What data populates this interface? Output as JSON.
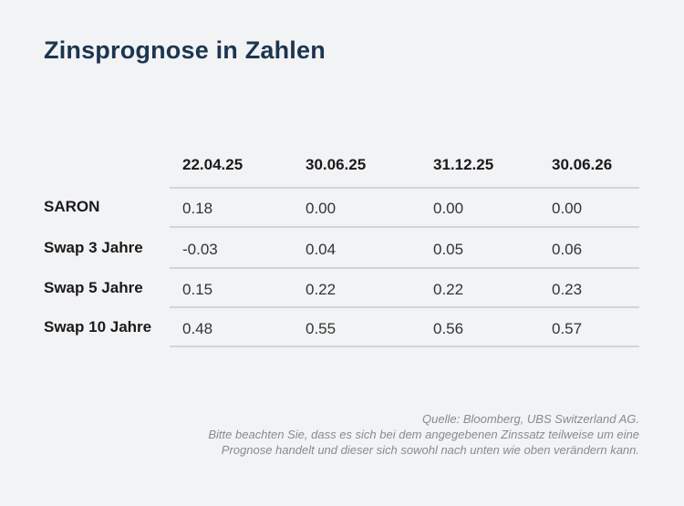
{
  "title": "Zinsprognose in Zahlen",
  "table": {
    "columns": [
      "22.04.25",
      "30.06.25",
      "31.12.25",
      "30.06.26"
    ],
    "rows": [
      {
        "label": "SARON",
        "values": [
          "0.18",
          "0.00",
          "0.00",
          "0.00"
        ]
      },
      {
        "label": "Swap 3 Jahre",
        "values": [
          "-0.03",
          "0.04",
          "0.05",
          "0.06"
        ]
      },
      {
        "label": "Swap 5 Jahre",
        "values": [
          "0.15",
          "0.22",
          "0.22",
          "0.23"
        ]
      },
      {
        "label": "Swap 10 Jahre",
        "values": [
          "0.48",
          "0.55",
          "0.56",
          "0.57"
        ]
      }
    ]
  },
  "footer": {
    "source": "Quelle: Bloomberg, UBS Switzerland AG.",
    "note_line1": "Bitte beachten Sie, dass es sich bei dem angegebenen Zinssatz teilweise um eine",
    "note_line2": "Prognose handelt und dieser sich sowohl nach unten wie oben verändern kann."
  }
}
